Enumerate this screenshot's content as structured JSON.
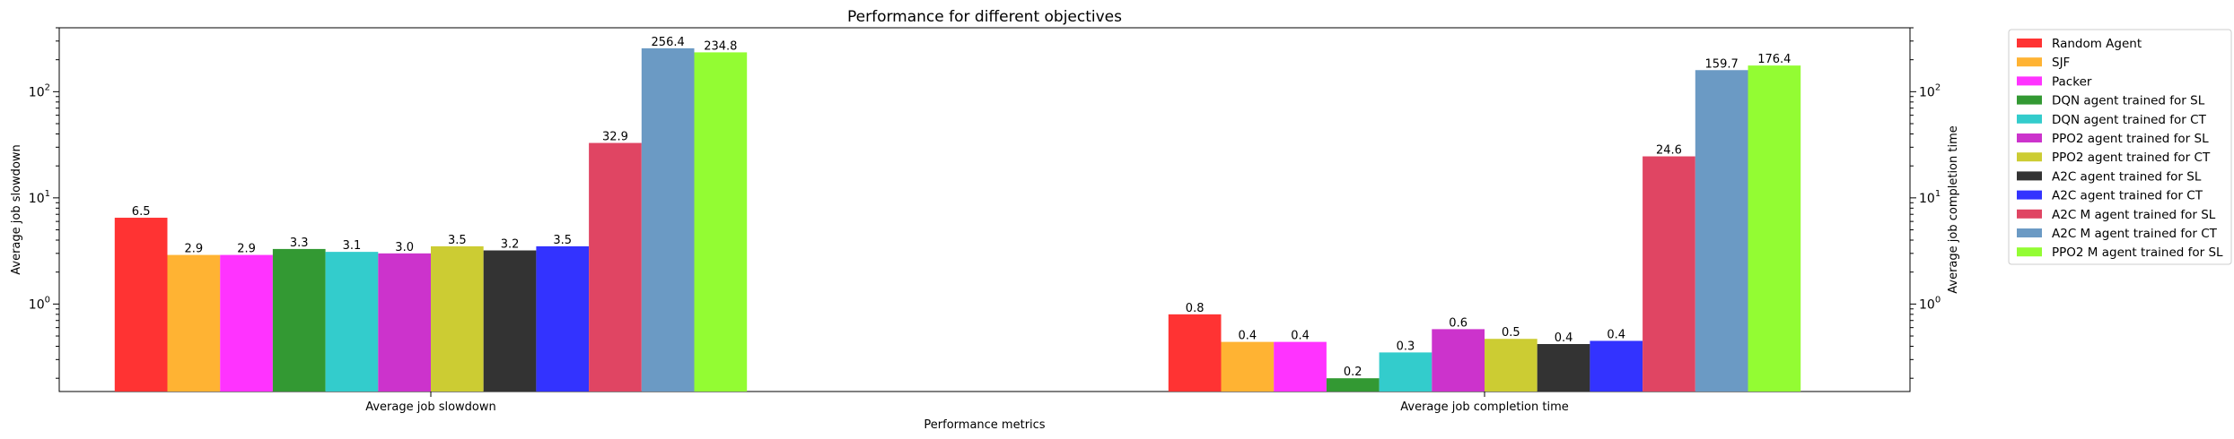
{
  "chart_data": {
    "type": "bar",
    "title": "Performance for different objectives",
    "xlabel": "Performance metrics",
    "ylabel_left": "Average job slowdown",
    "ylabel_right": "Average job completion time",
    "categories": [
      "Average job slowdown",
      "Average job completion time"
    ],
    "y_scale": "log",
    "ylim_left": [
      0.15,
      400
    ],
    "ylim_right": [
      0.15,
      400
    ],
    "left_tick_labels": [
      "10^0",
      "10^1",
      "10^2"
    ],
    "right_tick_labels": [
      "10^0",
      "10^1",
      "10^2"
    ],
    "grid": false,
    "legend_position": "outside-right",
    "series": [
      {
        "name": "Random Agent",
        "color": "#ff3333",
        "values": [
          6.5,
          0.8
        ],
        "labels": [
          "6.5",
          "0.8"
        ]
      },
      {
        "name": "SJF",
        "color": "#ffb333",
        "values": [
          2.9,
          0.44
        ],
        "labels": [
          "2.9",
          "0.4"
        ]
      },
      {
        "name": "Packer",
        "color": "#ff33ff",
        "values": [
          2.9,
          0.44
        ],
        "labels": [
          "2.9",
          "0.4"
        ]
      },
      {
        "name": "DQN agent trained for SL",
        "color": "#339933",
        "values": [
          3.3,
          0.2
        ],
        "labels": [
          "3.3",
          "0.2"
        ]
      },
      {
        "name": "DQN agent trained for CT",
        "color": "#33cccc",
        "values": [
          3.1,
          0.35
        ],
        "labels": [
          "3.1",
          "0.3"
        ]
      },
      {
        "name": "PPO2 agent trained for SL",
        "color": "#cc33cc",
        "values": [
          3.0,
          0.58
        ],
        "labels": [
          "3.0",
          "0.6"
        ]
      },
      {
        "name": "PPO2 agent trained for CT",
        "color": "#cccc33",
        "values": [
          3.5,
          0.47
        ],
        "labels": [
          "3.5",
          "0.5"
        ]
      },
      {
        "name": "A2C agent trained for SL",
        "color": "#333333",
        "values": [
          3.2,
          0.42
        ],
        "labels": [
          "3.2",
          "0.4"
        ]
      },
      {
        "name": "A2C agent trained for CT",
        "color": "#3333ff",
        "values": [
          3.5,
          0.45
        ],
        "labels": [
          "3.5",
          "0.4"
        ]
      },
      {
        "name": "A2C M agent trained for SL",
        "color": "#e04563",
        "values": [
          32.9,
          24.6
        ],
        "labels": [
          "32.9",
          "24.6"
        ]
      },
      {
        "name": "A2C M agent trained for CT",
        "color": "#6b9ac4",
        "values": [
          256.4,
          159.7
        ],
        "labels": [
          "256.4",
          "159.7"
        ]
      },
      {
        "name": "PPO2 M agent trained for SL",
        "color": "#93fc33",
        "values": [
          234.8,
          176.4
        ],
        "labels": [
          "234.8",
          "176.4"
        ]
      }
    ]
  }
}
